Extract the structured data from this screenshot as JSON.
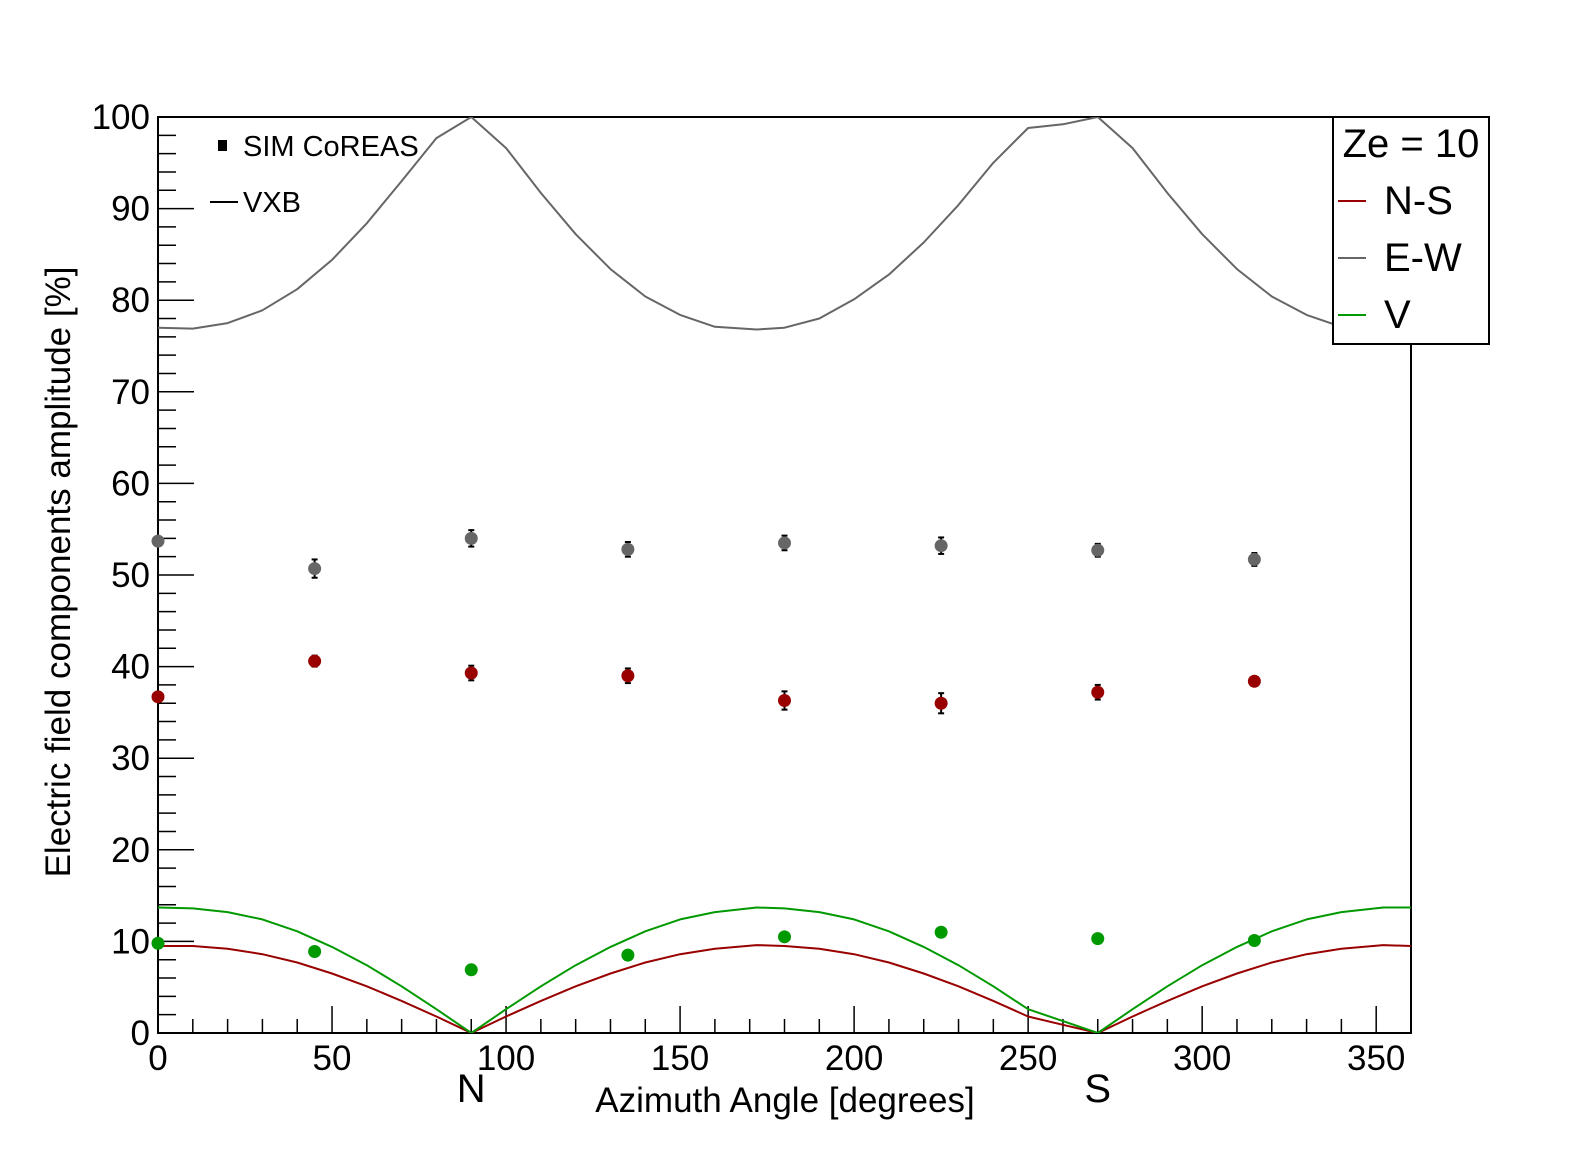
{
  "chart_data": {
    "type": "scatter",
    "xlabel": "Azimuth Angle [degrees]",
    "ylabel": "Electric field components amplitude [%]",
    "xlim": [
      0,
      360
    ],
    "ylim": [
      0,
      100
    ],
    "x_ticks": [
      0,
      50,
      100,
      150,
      200,
      250,
      300,
      350
    ],
    "y_ticks": [
      0,
      10,
      20,
      30,
      40,
      50,
      60,
      70,
      80,
      90,
      100
    ],
    "x_markers": [
      {
        "label": "N",
        "x": 90
      },
      {
        "label": "S",
        "x": 270
      }
    ],
    "legend_style": {
      "placement": "top-left",
      "entries": [
        {
          "label": "SIM CoREAS",
          "symbol": "marker"
        },
        {
          "label": "VXB",
          "symbol": "line"
        }
      ]
    },
    "legend_components": {
      "placement": "top-right",
      "title": "Ze = 10",
      "entries": [
        {
          "label": "N-S",
          "color": "#990000"
        },
        {
          "label": "E-W",
          "color": "#666666"
        },
        {
          "label": "V",
          "color": "#009900"
        }
      ]
    },
    "series": [
      {
        "name": "E-W",
        "kind": "points",
        "color": "#666666",
        "x": [
          0,
          45,
          90,
          135,
          180,
          225,
          270,
          315
        ],
        "y": [
          53.7,
          50.7,
          54.0,
          52.8,
          53.5,
          53.2,
          52.7,
          51.7
        ],
        "err": [
          0.4,
          1.0,
          0.9,
          0.8,
          0.8,
          0.9,
          0.7,
          0.7
        ]
      },
      {
        "name": "N-S",
        "kind": "points",
        "color": "#990000",
        "x": [
          0,
          45,
          90,
          135,
          180,
          225,
          270,
          315
        ],
        "y": [
          36.7,
          40.6,
          39.3,
          39.0,
          36.3,
          36.0,
          37.2,
          38.4
        ],
        "err": [
          0.4,
          0.6,
          0.8,
          0.8,
          1.0,
          1.1,
          0.8,
          0.4
        ]
      },
      {
        "name": "V",
        "kind": "points",
        "color": "#009900",
        "x": [
          0,
          45,
          90,
          135,
          180,
          225,
          270,
          315
        ],
        "y": [
          9.8,
          8.9,
          6.9,
          8.5,
          10.5,
          11.0,
          10.3,
          10.1
        ],
        "err": [
          0.2,
          0.2,
          0.2,
          0.2,
          0.2,
          0.2,
          0.2,
          0.2
        ]
      },
      {
        "name": "E-W",
        "kind": "curve",
        "model": "VXB",
        "color": "#666666",
        "x": [
          0,
          10,
          20,
          30,
          40,
          50,
          60,
          70,
          80,
          90,
          100,
          110,
          120,
          130,
          140,
          150,
          160,
          172,
          180,
          190,
          200,
          210,
          220,
          230,
          240,
          250,
          260,
          270,
          280,
          290,
          300,
          310,
          320,
          330,
          340,
          352,
          360
        ],
        "y": [
          77.0,
          76.9,
          77.5,
          78.9,
          81.2,
          84.4,
          88.4,
          93.0,
          97.7,
          100.0,
          96.6,
          91.7,
          87.2,
          83.4,
          80.4,
          78.4,
          77.1,
          76.8,
          77.0,
          78.0,
          80.1,
          82.8,
          86.3,
          90.4,
          95.0,
          98.8,
          99.2,
          100.0,
          96.6,
          91.7,
          87.2,
          83.4,
          80.4,
          78.4,
          77.1,
          76.8,
          77.0
        ]
      },
      {
        "name": "N-S",
        "kind": "curve",
        "model": "VXB",
        "color": "#990000",
        "x": [
          0,
          10,
          20,
          30,
          40,
          50,
          60,
          70,
          80,
          90,
          100,
          110,
          120,
          130,
          140,
          150,
          160,
          172,
          180,
          190,
          200,
          210,
          220,
          230,
          240,
          250,
          260,
          270,
          280,
          290,
          300,
          310,
          320,
          330,
          340,
          352,
          360
        ],
        "y": [
          9.5,
          9.5,
          9.2,
          8.6,
          7.7,
          6.5,
          5.1,
          3.5,
          1.8,
          0.0,
          1.8,
          3.5,
          5.1,
          6.5,
          7.7,
          8.6,
          9.2,
          9.6,
          9.5,
          9.2,
          8.6,
          7.7,
          6.5,
          5.1,
          3.5,
          1.8,
          0.9,
          0.0,
          1.8,
          3.5,
          5.1,
          6.5,
          7.7,
          8.6,
          9.2,
          9.6,
          9.5
        ]
      },
      {
        "name": "V",
        "kind": "curve",
        "model": "VXB",
        "color": "#009900",
        "x": [
          0,
          10,
          20,
          30,
          40,
          50,
          60,
          70,
          80,
          90,
          100,
          110,
          120,
          130,
          140,
          150,
          160,
          172,
          180,
          190,
          200,
          210,
          220,
          230,
          240,
          250,
          260,
          270,
          280,
          290,
          300,
          310,
          320,
          330,
          340,
          352,
          360
        ],
        "y": [
          13.7,
          13.6,
          13.2,
          12.4,
          11.1,
          9.4,
          7.4,
          5.1,
          2.6,
          0.0,
          2.6,
          5.1,
          7.4,
          9.4,
          11.1,
          12.4,
          13.2,
          13.7,
          13.6,
          13.2,
          12.4,
          11.1,
          9.4,
          7.4,
          5.1,
          2.6,
          1.3,
          0.0,
          2.6,
          5.1,
          7.4,
          9.4,
          11.1,
          12.4,
          13.2,
          13.7,
          13.7
        ]
      }
    ]
  }
}
